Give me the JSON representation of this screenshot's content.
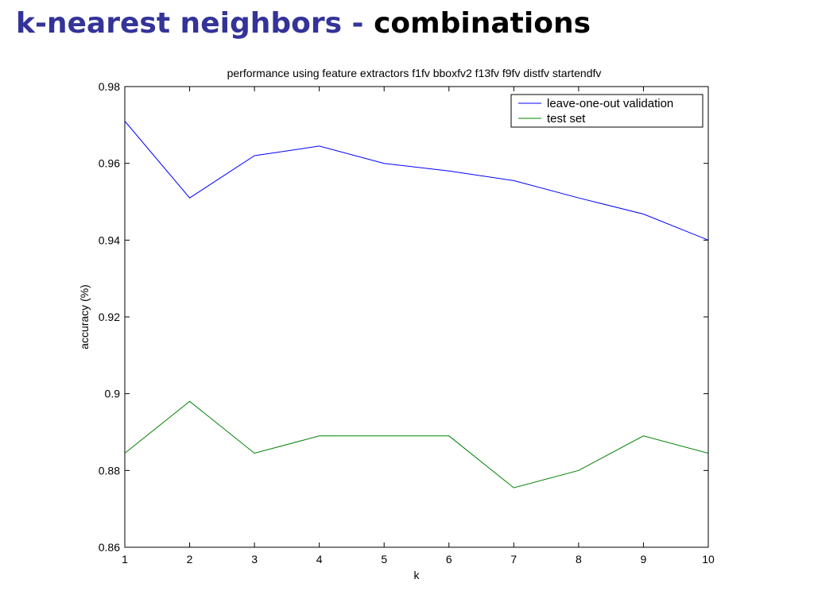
{
  "slide": {
    "title_part1": "k-nearest neighbors -",
    "title_part2": "combinations"
  },
  "chart_data": {
    "type": "line",
    "title": "performance using feature extractors f1fv bboxfv2 f13fv f9fv distfv startendfv",
    "xlabel": "k",
    "ylabel": "accuracy (%)",
    "x": [
      1,
      2,
      3,
      4,
      5,
      6,
      7,
      8,
      9,
      10
    ],
    "xlim": [
      1,
      10
    ],
    "ylim": [
      0.86,
      0.98
    ],
    "xticks": [
      1,
      2,
      3,
      4,
      5,
      6,
      7,
      8,
      9,
      10
    ],
    "yticks": [
      0.86,
      0.88,
      0.9,
      0.92,
      0.94,
      0.96,
      0.98
    ],
    "ytick_labels": [
      "0.86",
      "0.88",
      "0.9",
      "0.92",
      "0.94",
      "0.96",
      "0.98"
    ],
    "grid": false,
    "legend_position": "top-right",
    "series": [
      {
        "name": "leave-one-out validation",
        "color": "#0000ff",
        "values": [
          0.971,
          0.951,
          0.962,
          0.9645,
          0.96,
          0.958,
          0.9555,
          0.951,
          0.9468,
          0.94
        ]
      },
      {
        "name": "test set",
        "color": "#008000",
        "values": [
          0.8845,
          0.898,
          0.8845,
          0.889,
          0.889,
          0.889,
          0.8755,
          0.88,
          0.889,
          0.8845
        ]
      }
    ]
  }
}
